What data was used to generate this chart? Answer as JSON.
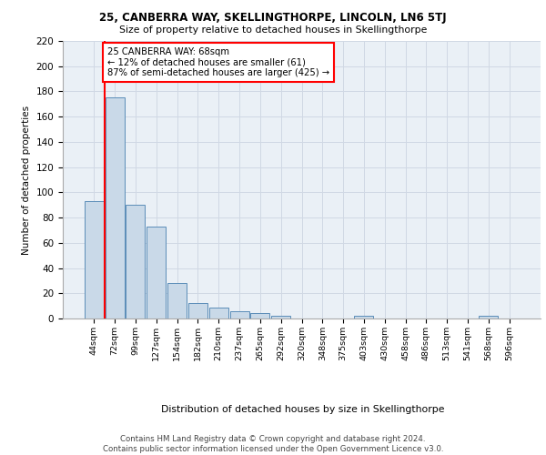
{
  "title_main": "25, CANBERRA WAY, SKELLINGTHORPE, LINCOLN, LN6 5TJ",
  "title_sub": "Size of property relative to detached houses in Skellingthorpe",
  "xlabel": "Distribution of detached houses by size in Skellingthorpe",
  "ylabel": "Number of detached properties",
  "categories": [
    "44sqm",
    "72sqm",
    "99sqm",
    "127sqm",
    "154sqm",
    "182sqm",
    "210sqm",
    "237sqm",
    "265sqm",
    "292sqm",
    "320sqm",
    "348sqm",
    "375sqm",
    "403sqm",
    "430sqm",
    "458sqm",
    "486sqm",
    "513sqm",
    "541sqm",
    "568sqm",
    "596sqm"
  ],
  "values": [
    93,
    175,
    90,
    73,
    28,
    12,
    9,
    6,
    4,
    2,
    0,
    0,
    0,
    2,
    0,
    0,
    0,
    0,
    0,
    2,
    0
  ],
  "bar_color": "#c9d9e8",
  "bar_edge_color": "#5b8db8",
  "annotation_text": "25 CANBERRA WAY: 68sqm\n← 12% of detached houses are smaller (61)\n87% of semi-detached houses are larger (425) →",
  "annotation_box_color": "white",
  "annotation_box_edge": "red",
  "marker_line_color": "red",
  "grid_color": "#d0d8e4",
  "background_color": "#eaf0f6",
  "footer_text": "Contains HM Land Registry data © Crown copyright and database right 2024.\nContains public sector information licensed under the Open Government Licence v3.0.",
  "ylim": [
    0,
    220
  ],
  "yticks": [
    0,
    20,
    40,
    60,
    80,
    100,
    120,
    140,
    160,
    180,
    200,
    220
  ]
}
